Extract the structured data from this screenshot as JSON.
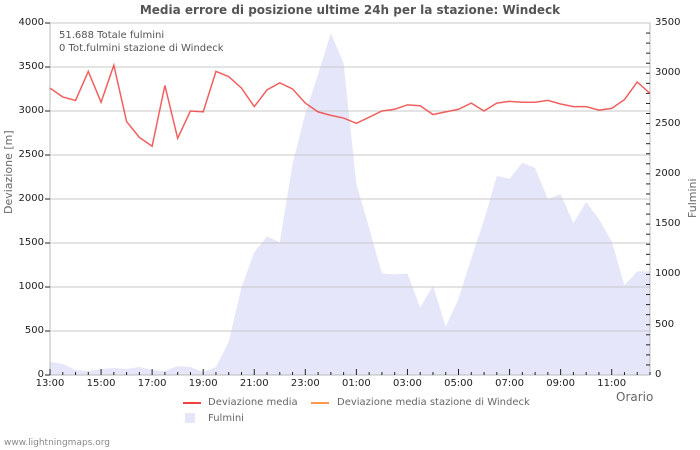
{
  "chart_data": {
    "type": "line",
    "title": "Media errore di posizione ultime 24h per la stazione: Windeck",
    "xlabel": "Orario",
    "ylabel": "Deviazione  [m]",
    "ylabel_right": "Fulmini",
    "ylim": [
      0,
      4000
    ],
    "ylim_right": [
      0,
      3500
    ],
    "yticks": [
      "0",
      "500",
      "1000",
      "1500",
      "2000",
      "2500",
      "3000",
      "3500",
      "4000"
    ],
    "yticks_right": [
      "0",
      "500",
      "1000",
      "1500",
      "2000",
      "2500",
      "3000",
      "3500"
    ],
    "xticks": [
      "13:00",
      "15:00",
      "17:00",
      "19:00",
      "21:00",
      "23:00",
      "01:00",
      "03:00",
      "05:00",
      "07:00",
      "09:00",
      "11:00"
    ],
    "grid": true,
    "legend_position": "bottom",
    "annotations": [
      "51.688 Totale fulmini",
      "0 Tot.fulmini stazione di Windeck"
    ],
    "x": [
      0,
      0.5,
      1,
      1.5,
      2,
      2.5,
      3,
      3.5,
      4,
      4.5,
      5,
      5.5,
      6,
      6.5,
      7,
      7.5,
      8,
      8.5,
      9,
      9.5,
      10,
      10.5,
      11,
      11.5,
      12,
      12.5,
      13,
      13.5,
      14,
      14.5,
      15,
      15.5,
      16,
      16.5,
      17,
      17.5,
      18,
      18.5,
      19,
      19.5,
      20,
      20.5,
      21,
      21.5,
      22,
      22.5,
      23,
      23.5
    ],
    "series": [
      {
        "name": "Deviazione media",
        "axis": "left",
        "color": "#ee4444",
        "values": [
          3260,
          3160,
          3120,
          3450,
          3100,
          3520,
          2880,
          2700,
          2600,
          3290,
          2690,
          3000,
          2990,
          3450,
          3390,
          3260,
          3050,
          3240,
          3320,
          3250,
          3090,
          2990,
          2950,
          2920,
          2860,
          2930,
          3000,
          3020,
          3070,
          3060,
          2960,
          2990,
          3020,
          3090,
          3000,
          3090,
          3110,
          3100,
          3100,
          3120,
          3080,
          3050,
          3050,
          3010,
          3030,
          3130,
          3330,
          3200
        ]
      },
      {
        "name": "Deviazione media stazione di Windeck",
        "axis": "left",
        "color": "#ff9955",
        "values": []
      },
      {
        "name": "Fulmini",
        "axis": "right",
        "type": "area",
        "color": "#e6e6fa",
        "values": [
          130,
          110,
          50,
          40,
          60,
          70,
          60,
          80,
          50,
          40,
          90,
          80,
          30,
          80,
          330,
          870,
          1220,
          1380,
          1320,
          2100,
          2600,
          2990,
          3400,
          3100,
          1900,
          1460,
          1010,
          1000,
          1010,
          670,
          890,
          480,
          760,
          1160,
          1540,
          1980,
          1950,
          2110,
          2060,
          1750,
          1800,
          1510,
          1720,
          1550,
          1330,
          890,
          1030,
          1030
        ]
      }
    ]
  },
  "texts": {
    "title": "Media errore di posizione ultime 24h per la stazione: Windeck",
    "ylabel": "Deviazione  [m]",
    "ylabel_right": "Fulmini",
    "xlabel": "Orario",
    "info_total": "51.688 Totale fulmini",
    "info_station": "0 Tot.fulmini stazione di Windeck",
    "legend_dev": "Deviazione media",
    "legend_dev_station": "Deviazione media stazione di Windeck",
    "legend_fulmini": "Fulmini",
    "footer": "www.lightningmaps.org"
  },
  "colors": {
    "line": "#ee4444",
    "line_station": "#ff9955",
    "area": "#e6e6fa",
    "grid": "#c8c8c8",
    "axis": "#bbbbbb"
  }
}
